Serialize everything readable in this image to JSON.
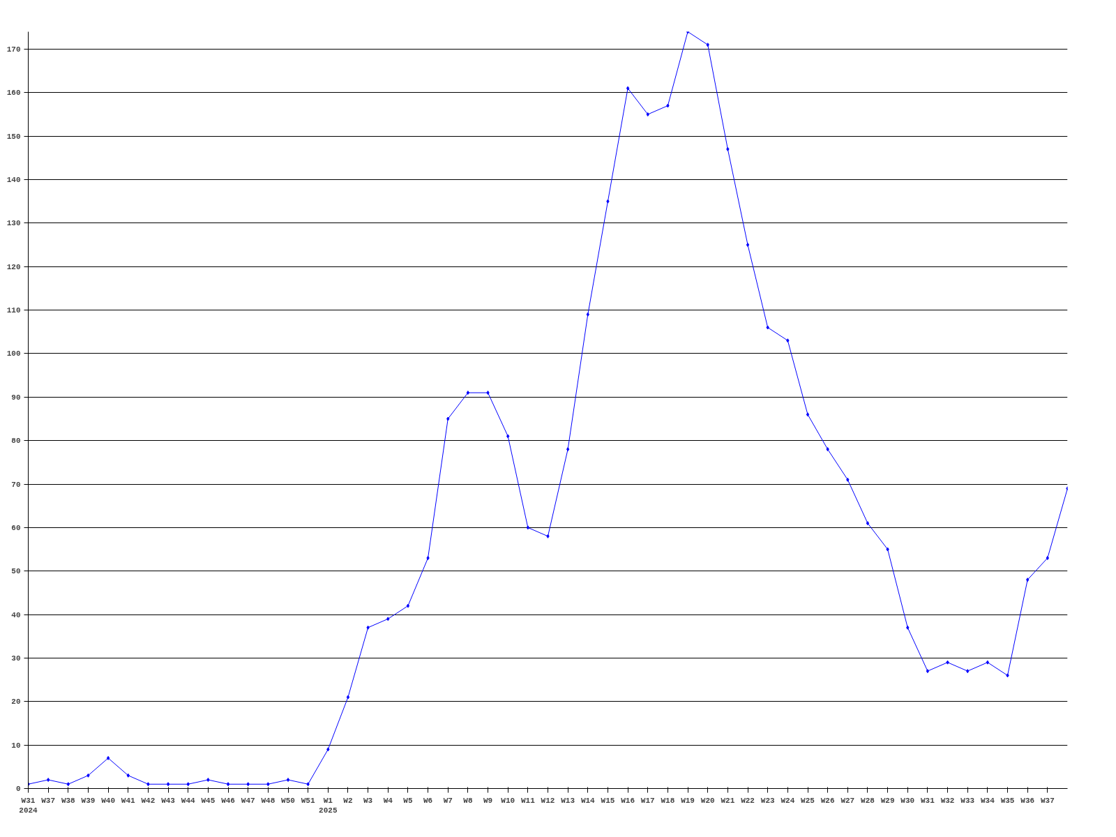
{
  "chart_data": {
    "type": "line",
    "categories": [
      "W31\n2024",
      "W37",
      "W38",
      "W39",
      "W40",
      "W41",
      "W42",
      "W43",
      "W44",
      "W45",
      "W46",
      "W47",
      "W48",
      "W50",
      "W51",
      "W1\n2025",
      "W2",
      "W3",
      "W4",
      "W5",
      "W6",
      "W7",
      "W8",
      "W9",
      "W10",
      "W11",
      "W12",
      "W13",
      "W14",
      "W15",
      "W16",
      "W17",
      "W18",
      "W19",
      "W20",
      "W21",
      "W22",
      "W23",
      "W24",
      "W25",
      "W26",
      "W27",
      "W28",
      "W29",
      "W30",
      "W31",
      "W32",
      "W33",
      "W34",
      "W35",
      "W36",
      "W37",
      null
    ],
    "series": [
      {
        "color": "#0000ff",
        "values": [
          1,
          2,
          1,
          3,
          7,
          3,
          1,
          1,
          1,
          2,
          1,
          1,
          1,
          2,
          1,
          9,
          21,
          37,
          39,
          42,
          53,
          85,
          91,
          91,
          81,
          60,
          58,
          78,
          109,
          135,
          161,
          155,
          157,
          174,
          171,
          147,
          125,
          106,
          103,
          86,
          78,
          71,
          61,
          55,
          37,
          27,
          29,
          27,
          29,
          26,
          48,
          53,
          69
        ]
      }
    ],
    "ylim": [
      0,
      174
    ],
    "yticks": [
      0,
      10,
      20,
      30,
      40,
      50,
      60,
      70,
      80,
      90,
      100,
      110,
      120,
      130,
      140,
      150,
      160,
      170
    ],
    "grid": "y",
    "marker": "diamond",
    "line_style": "solid"
  }
}
